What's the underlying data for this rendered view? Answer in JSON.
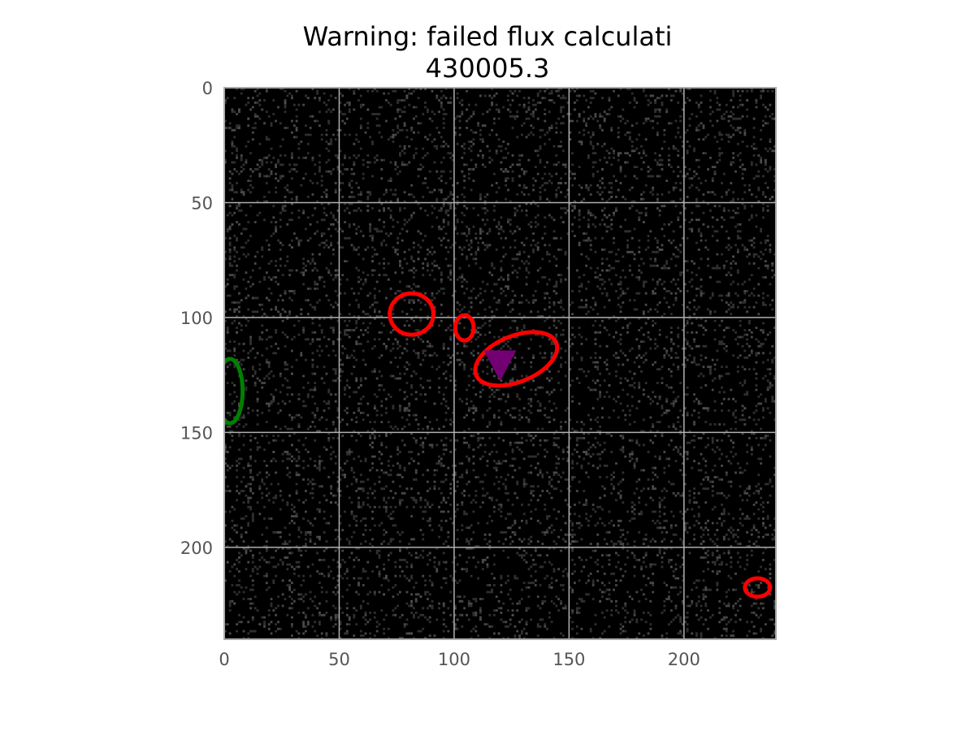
{
  "chart_data": {
    "type": "image",
    "title_lines": [
      "Warning: failed flux calculati",
      "430005.3"
    ],
    "xlim": [
      0,
      240
    ],
    "ylim": [
      240,
      0
    ],
    "xticks": [
      0,
      50,
      100,
      150,
      200
    ],
    "yticks": [
      0,
      50,
      100,
      150,
      200
    ],
    "grid": true,
    "background": "#000000",
    "noise_color": "#555555",
    "grid_color": "#b0b0b0",
    "ellipses": [
      {
        "cx": 81.5,
        "cy": 98.5,
        "rx": 9.5,
        "ry": 9.0,
        "angle": 0,
        "color": "#ff0000"
      },
      {
        "cx": 104.5,
        "cy": 104.5,
        "rx": 4.0,
        "ry": 5.5,
        "angle": 0,
        "color": "#ff0000"
      },
      {
        "cx": 127.0,
        "cy": 118.0,
        "rx": 18.8,
        "ry": 10.0,
        "angle": -22,
        "color": "#ff0000"
      },
      {
        "cx": 232.0,
        "cy": 217.5,
        "rx": 5.5,
        "ry": 4.0,
        "angle": 0,
        "color": "#ff0000"
      },
      {
        "cx": 2.5,
        "cy": 132.0,
        "rx": 5.5,
        "ry": 14.0,
        "angle": 0,
        "color": "#008000"
      }
    ],
    "markers": [
      {
        "x": 120,
        "y": 121,
        "shape": "triangle-down",
        "color": "#800080"
      }
    ]
  }
}
